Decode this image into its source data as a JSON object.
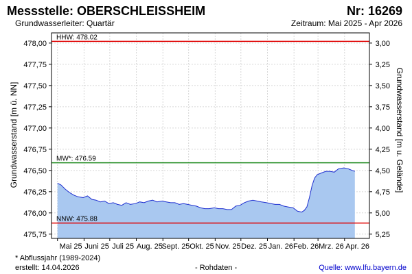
{
  "header": {
    "station_title": "Messstelle: OBERSCHLEISSHEIM",
    "station_number": "Nr: 16269",
    "aquifer": "Grundwasserleiter: Quartär",
    "period": "Zeitraum: Mai 2025 - Apr 2026"
  },
  "footer": {
    "footnote": "* Abflussjahr (1989-2024)",
    "created": "erstellt:  14.04.2026",
    "raw_data": "- Rohdaten -",
    "source": "Quelle: www.lfu.bayern.de"
  },
  "chart_data": {
    "type": "area",
    "ylabel": "Grundwasserstand [m ü. NN]",
    "ylabel_right": "Grundwasserstand [m u. Gelände]",
    "ylim": [
      475.75,
      478.0
    ],
    "ylim_right": [
      5.25,
      3.0
    ],
    "yticks": [
      "478,00",
      "477,75",
      "477,50",
      "477,25",
      "477,00",
      "476,75",
      "476,50",
      "476,25",
      "476,00",
      "475,75"
    ],
    "yticks_right": [
      "3,00",
      "3,25",
      "3,50",
      "3,75",
      "4,00",
      "4,25",
      "4,50",
      "4,75",
      "5,00",
      "5,25"
    ],
    "xticks": [
      "Mai 25",
      "Juni 25",
      "Juli 25",
      "Aug. 25",
      "Sept. 25",
      "Okt. 25",
      "Nov. 25",
      "Dez. 25",
      "Jan. 26",
      "Feb. 26",
      "Mrz. 26",
      "Apr. 26"
    ],
    "grid": true,
    "colors": {
      "fill": "#a9c8f0",
      "line": "#1e2fd0",
      "hhw": "#e00000",
      "mw": "#1f8a1f",
      "nnw": "#e00000"
    },
    "reference_lines": [
      {
        "label": "HHW: 478.02",
        "value": 478.02
      },
      {
        "label": "MW*: 476.59",
        "value": 476.59
      },
      {
        "label": "NNW: 475.88",
        "value": 475.88
      }
    ],
    "series": [
      {
        "x": [
          "2025-05-01",
          "2025-05-05",
          "2025-05-10",
          "2025-05-15",
          "2025-05-20",
          "2025-05-25",
          "2025-05-31",
          "2025-06-05",
          "2025-06-10",
          "2025-06-15",
          "2025-06-20",
          "2025-06-25",
          "2025-06-30",
          "2025-07-05",
          "2025-07-10",
          "2025-07-15",
          "2025-07-20",
          "2025-07-25",
          "2025-07-31",
          "2025-08-05",
          "2025-08-10",
          "2025-08-15",
          "2025-08-20",
          "2025-08-25",
          "2025-08-31",
          "2025-09-05",
          "2025-09-10",
          "2025-09-15",
          "2025-09-20",
          "2025-09-25",
          "2025-09-30",
          "2025-10-05",
          "2025-10-10",
          "2025-10-15",
          "2025-10-20",
          "2025-10-25",
          "2025-10-31",
          "2025-11-05",
          "2025-11-10",
          "2025-11-15",
          "2025-11-20",
          "2025-11-25",
          "2025-11-30",
          "2025-12-05",
          "2025-12-10",
          "2025-12-15",
          "2025-12-20",
          "2025-12-25",
          "2025-12-31",
          "2026-01-05",
          "2026-01-10",
          "2026-01-15",
          "2026-01-20",
          "2026-01-25",
          "2026-01-31",
          "2026-02-05",
          "2026-02-10",
          "2026-02-13",
          "2026-02-16",
          "2026-02-19",
          "2026-02-22",
          "2026-02-25",
          "2026-02-28",
          "2026-03-05",
          "2026-03-10",
          "2026-03-15",
          "2026-03-20",
          "2026-03-25",
          "2026-03-31",
          "2026-04-05",
          "2026-04-10",
          "2026-04-13"
        ],
        "values": [
          476.35,
          476.33,
          476.28,
          476.24,
          476.21,
          476.19,
          476.18,
          476.2,
          476.16,
          476.15,
          476.13,
          476.14,
          476.11,
          476.12,
          476.1,
          476.09,
          476.12,
          476.1,
          476.11,
          476.13,
          476.12,
          476.14,
          476.15,
          476.13,
          476.14,
          476.13,
          476.12,
          476.12,
          476.1,
          476.11,
          476.1,
          476.09,
          476.08,
          476.06,
          476.05,
          476.05,
          476.06,
          476.05,
          476.05,
          476.04,
          476.04,
          476.08,
          476.09,
          476.12,
          476.14,
          476.15,
          476.14,
          476.13,
          476.12,
          476.11,
          476.1,
          476.1,
          476.08,
          476.07,
          476.06,
          476.02,
          476.01,
          476.03,
          476.07,
          476.18,
          476.32,
          476.41,
          476.45,
          476.47,
          476.49,
          476.49,
          476.48,
          476.52,
          476.53,
          476.52,
          476.5,
          476.49
        ]
      }
    ]
  }
}
